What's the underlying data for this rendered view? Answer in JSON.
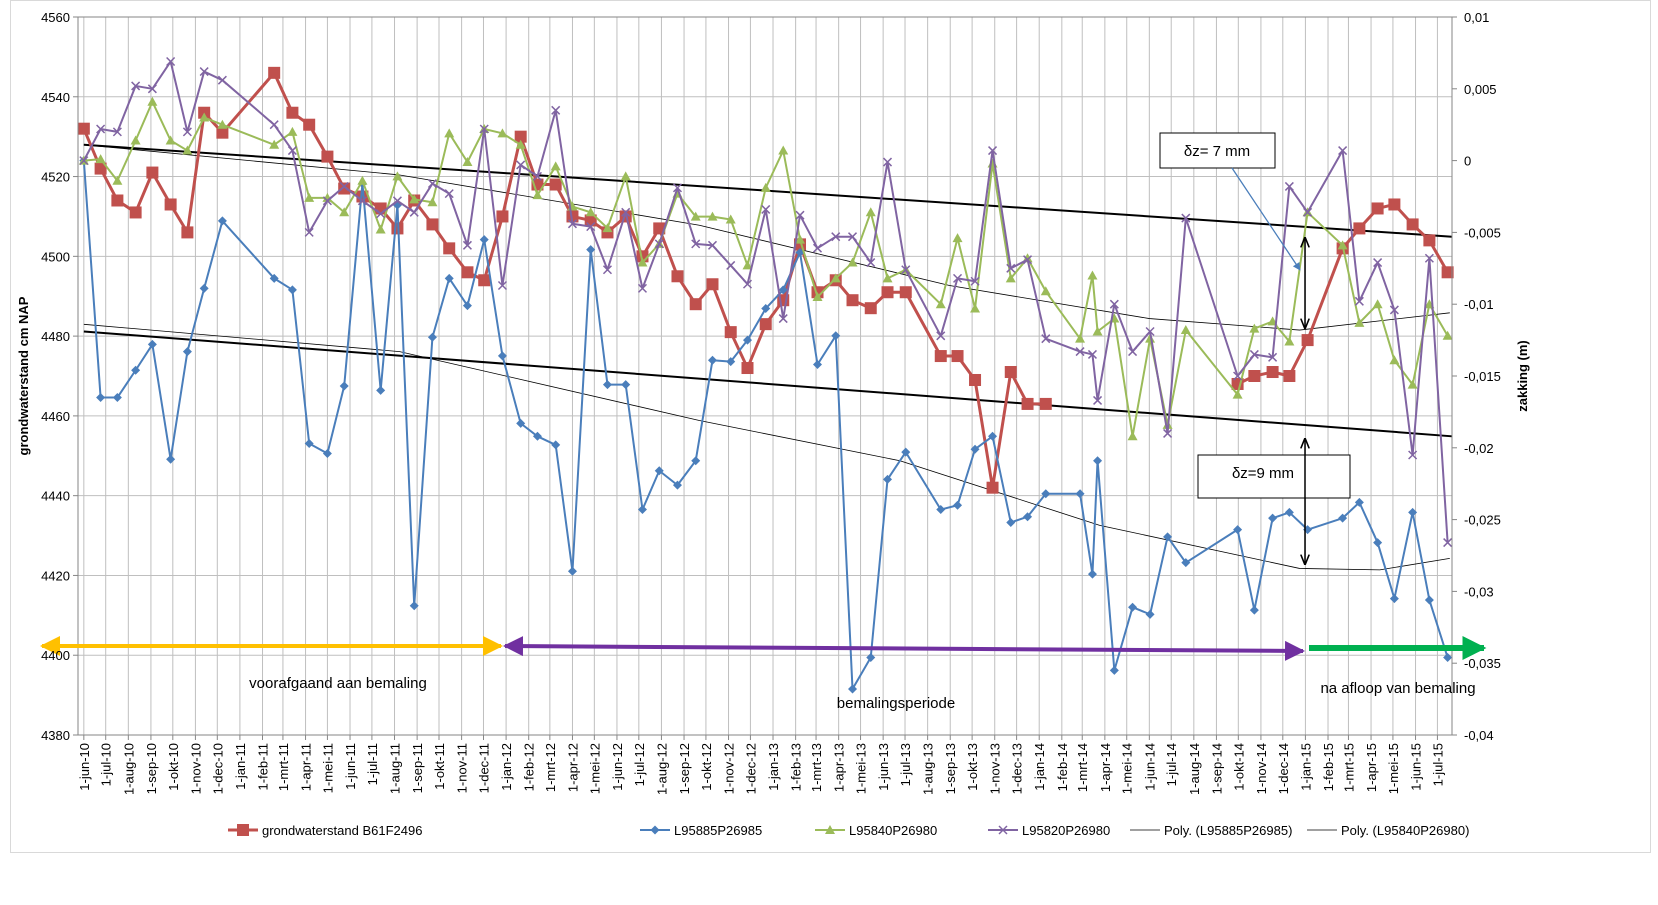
{
  "chart_data": {
    "type": "line",
    "y_label": "grondwaterstand cm NAP",
    "y2_label": "zakking (m)",
    "xlim": [
      "2010-05-24",
      "2015-07-21"
    ],
    "xticks": [
      {
        "value": "2010-06-01",
        "label": "1-jun-10"
      },
      {
        "value": "2010-07-01",
        "label": "1-jul-10"
      },
      {
        "value": "2010-08-01",
        "label": "1-aug-10"
      },
      {
        "value": "2010-09-01",
        "label": "1-sep-10"
      },
      {
        "value": "2010-10-01",
        "label": "1-okt-10"
      },
      {
        "value": "2010-11-01",
        "label": "1-nov-10"
      },
      {
        "value": "2010-12-01",
        "label": "1-dec-10"
      },
      {
        "value": "2011-01-01",
        "label": "1-jan-11"
      },
      {
        "value": "2011-02-01",
        "label": "1-feb-11"
      },
      {
        "value": "2011-03-01",
        "label": "1-mrt-11"
      },
      {
        "value": "2011-04-01",
        "label": "1-apr-11"
      },
      {
        "value": "2011-05-01",
        "label": "1-mei-11"
      },
      {
        "value": "2011-06-01",
        "label": "1-jun-11"
      },
      {
        "value": "2011-07-01",
        "label": "1-jul-11"
      },
      {
        "value": "2011-08-01",
        "label": "1-aug-11"
      },
      {
        "value": "2011-09-01",
        "label": "1-sep-11"
      },
      {
        "value": "2011-10-01",
        "label": "1-okt-11"
      },
      {
        "value": "2011-11-01",
        "label": "1-nov-11"
      },
      {
        "value": "2011-12-01",
        "label": "1-dec-11"
      },
      {
        "value": "2012-01-01",
        "label": "1-jan-12"
      },
      {
        "value": "2012-02-01",
        "label": "1-feb-12"
      },
      {
        "value": "2012-03-01",
        "label": "1-mrt-12"
      },
      {
        "value": "2012-04-01",
        "label": "1-apr-12"
      },
      {
        "value": "2012-05-01",
        "label": "1-mei-12"
      },
      {
        "value": "2012-06-01",
        "label": "1-jun-12"
      },
      {
        "value": "2012-07-01",
        "label": "1-jul-12"
      },
      {
        "value": "2012-08-01",
        "label": "1-aug-12"
      },
      {
        "value": "2012-09-01",
        "label": "1-sep-12"
      },
      {
        "value": "2012-10-01",
        "label": "1-okt-12"
      },
      {
        "value": "2012-11-01",
        "label": "1-nov-12"
      },
      {
        "value": "2012-12-01",
        "label": "1-dec-12"
      },
      {
        "value": "2013-01-01",
        "label": "1-jan-13"
      },
      {
        "value": "2013-02-01",
        "label": "1-feb-13"
      },
      {
        "value": "2013-03-01",
        "label": "1-mrt-13"
      },
      {
        "value": "2013-04-01",
        "label": "1-apr-13"
      },
      {
        "value": "2013-05-01",
        "label": "1-mei-13"
      },
      {
        "value": "2013-06-01",
        "label": "1-jun-13"
      },
      {
        "value": "2013-07-01",
        "label": "1-jul-13"
      },
      {
        "value": "2013-08-01",
        "label": "1-aug-13"
      },
      {
        "value": "2013-09-01",
        "label": "1-sep-13"
      },
      {
        "value": "2013-10-01",
        "label": "1-okt-13"
      },
      {
        "value": "2013-11-01",
        "label": "1-nov-13"
      },
      {
        "value": "2013-12-01",
        "label": "1-dec-13"
      },
      {
        "value": "2014-01-01",
        "label": "1-jan-14"
      },
      {
        "value": "2014-02-01",
        "label": "1-feb-14"
      },
      {
        "value": "2014-03-01",
        "label": "1-mrt-14"
      },
      {
        "value": "2014-04-01",
        "label": "1-apr-14"
      },
      {
        "value": "2014-05-01",
        "label": "1-mei-14"
      },
      {
        "value": "2014-06-01",
        "label": "1-jun-14"
      },
      {
        "value": "2014-07-01",
        "label": "1-jul-14"
      },
      {
        "value": "2014-08-01",
        "label": "1-aug-14"
      },
      {
        "value": "2014-09-01",
        "label": "1-sep-14"
      },
      {
        "value": "2014-10-01",
        "label": "1-okt-14"
      },
      {
        "value": "2014-11-01",
        "label": "1-nov-14"
      },
      {
        "value": "2014-12-01",
        "label": "1-dec-14"
      },
      {
        "value": "2015-01-01",
        "label": "1-jan-15"
      },
      {
        "value": "2015-02-01",
        "label": "1-feb-15"
      },
      {
        "value": "2015-03-01",
        "label": "1-mrt-15"
      },
      {
        "value": "2015-04-01",
        "label": "1-apr-15"
      },
      {
        "value": "2015-05-01",
        "label": "1-mei-15"
      },
      {
        "value": "2015-06-01",
        "label": "1-jun-15"
      },
      {
        "value": "2015-07-01",
        "label": "1-jul-15"
      }
    ],
    "ylim": [
      4380,
      4560
    ],
    "yticks": [
      4380,
      4400,
      4420,
      4440,
      4460,
      4480,
      4500,
      4520,
      4540,
      4560
    ],
    "y2lim": [
      -0.04,
      0.01
    ],
    "y2ticks": [
      {
        "value": -0.04,
        "label": "-0,04"
      },
      {
        "value": -0.035,
        "label": "-0,035"
      },
      {
        "value": -0.03,
        "label": "-0,03"
      },
      {
        "value": -0.025,
        "label": "-0,025"
      },
      {
        "value": -0.02,
        "label": "-0,02"
      },
      {
        "value": -0.015,
        "label": "-0,015"
      },
      {
        "value": -0.01,
        "label": "-0,01"
      },
      {
        "value": -0.005,
        "label": "-0,005"
      },
      0,
      {
        "value": 0.005,
        "label": "0,005"
      },
      {
        "value": 0.01,
        "label": "0,01"
      }
    ],
    "grid": true,
    "legend": "bottom",
    "x": [
      "2010-06-01",
      "2010-06-24",
      "2010-07-17",
      "2010-08-11",
      "2010-09-03",
      "2010-09-28",
      "2010-10-21",
      "2010-11-13",
      "2010-12-08",
      "2011-02-17",
      "2011-03-14",
      "2011-04-06",
      "2011-05-01",
      "2011-05-24",
      "2011-06-18",
      "2011-07-13",
      "2011-08-05",
      "2011-08-28",
      "2011-09-22",
      "2011-10-15",
      "2011-11-09",
      "2011-12-02",
      "2011-12-27",
      "2012-01-21",
      "2012-02-13",
      "2012-03-09",
      "2012-04-01",
      "2012-04-26",
      "2012-05-19",
      "2012-06-13",
      "2012-07-06",
      "2012-07-29",
      "2012-08-23",
      "2012-09-17",
      "2012-10-10",
      "2012-11-04",
      "2012-11-27",
      "2012-12-22",
      "2013-01-15",
      "2013-02-07",
      "2013-03-03",
      "2013-03-28",
      "2013-04-20",
      "2013-05-15",
      "2013-06-07",
      "2013-07-02",
      "2013-08-19",
      "2013-09-11",
      "2013-10-05",
      "2013-10-29",
      "2013-11-23",
      "2013-12-16",
      "2014-01-10",
      "2014-02-26",
      "2014-03-15",
      "2014-03-22",
      "2014-04-14",
      "2014-05-09",
      "2014-06-02",
      "2014-06-26",
      "2014-07-21",
      "2014-09-30",
      "2014-10-23",
      "2014-11-17",
      "2014-12-10",
      "2015-01-04",
      "2015-02-21",
      "2015-03-16",
      "2015-04-10",
      "2015-05-03",
      "2015-05-28",
      "2015-06-20",
      "2015-07-15"
    ],
    "series": [
      {
        "name": "grondwaterstand B61F2496",
        "color": "#c0504d",
        "marker": "square",
        "axis": "y",
        "values": [
          4532,
          4522,
          4514,
          4511,
          4521,
          4513,
          4506,
          4536,
          4531,
          4546,
          4536,
          4533,
          4525,
          4517,
          4515,
          4512,
          4507,
          4514,
          4508,
          4502,
          4496,
          4494,
          4510,
          4530,
          4518,
          4518,
          4510,
          4509,
          4506,
          4510,
          4500,
          4507,
          4495,
          4488,
          4493,
          4481,
          4472,
          4483,
          4489,
          4503,
          4491,
          4494,
          4489,
          4487,
          4491,
          4491,
          4475,
          4475,
          4469,
          4442,
          4471,
          4463,
          4463,
          null,
          null,
          null,
          null,
          null,
          null,
          null,
          null,
          4468,
          4470,
          4471,
          4470,
          4479,
          4502,
          4507,
          4512,
          4513,
          4508,
          4504,
          4496
        ]
      },
      {
        "name": "L95885P26985",
        "color": "#4a7ebb",
        "marker": "diamond",
        "axis": "y2",
        "values": [
          0,
          -0.0165,
          -0.0165,
          -0.0146,
          -0.0128,
          -0.0208,
          -0.0133,
          -0.0089,
          -0.0042,
          -0.0082,
          -0.009,
          -0.0197,
          -0.0204,
          -0.0157,
          -0.0016,
          -0.016,
          -0.0031,
          -0.031,
          -0.0123,
          -0.0082,
          -0.0101,
          -0.0055,
          -0.0136,
          -0.0183,
          -0.0192,
          -0.0198,
          -0.0286,
          -0.0062,
          -0.0156,
          -0.0156,
          -0.0243,
          -0.0216,
          -0.0226,
          -0.0209,
          -0.0139,
          -0.014,
          -0.0125,
          -0.0103,
          -0.009,
          -0.0064,
          -0.0142,
          -0.0122,
          -0.0368,
          -0.0346,
          -0.0222,
          -0.0203,
          -0.0243,
          -0.024,
          -0.0201,
          -0.0192,
          -0.0252,
          -0.0248,
          -0.0232,
          -0.0232,
          -0.0288,
          -0.0209,
          -0.0355,
          -0.0311,
          -0.0316,
          -0.0262,
          -0.028,
          -0.0257,
          -0.0313,
          -0.0249,
          -0.0245,
          -0.0257,
          -0.0249,
          -0.0238,
          -0.0266,
          -0.0305,
          -0.0245,
          -0.0306,
          -0.0346
        ]
      },
      {
        "name": "L95840P26980",
        "color": "#9bbb59",
        "marker": "triangle",
        "axis": "y2",
        "values": [
          0,
          0.0001,
          -0.0014,
          0.0014,
          0.0041,
          0.0014,
          0.0007,
          0.003,
          0.0025,
          0.0011,
          0.002,
          -0.0026,
          -0.0026,
          -0.0036,
          -0.0014,
          -0.0048,
          -0.0011,
          -0.0027,
          -0.0029,
          0.0019,
          -0.0001,
          0.0022,
          0.0019,
          0.0011,
          -0.0024,
          -0.0004,
          -0.0032,
          -0.0036,
          -0.0047,
          -0.0011,
          -0.0071,
          -0.0058,
          -0.0023,
          -0.0039,
          -0.0039,
          -0.0041,
          -0.0073,
          -0.0019,
          0.0007,
          -0.0055,
          -0.0095,
          -0.0082,
          -0.0071,
          -0.0036,
          -0.0082,
          -0.0076,
          -0.01,
          -0.0054,
          -0.0103,
          -0.0002,
          -0.0082,
          -0.0068,
          -0.0091,
          -0.0124,
          -0.008,
          -0.0119,
          -0.011,
          -0.0192,
          -0.0124,
          -0.0184,
          -0.0118,
          -0.0163,
          -0.0117,
          -0.0112,
          -0.0126,
          -0.0036,
          -0.0059,
          -0.0113,
          -0.01,
          -0.0139,
          -0.0156,
          -0.01,
          -0.0122
        ]
      },
      {
        "name": "L95820P26980",
        "color": "#8064a2",
        "marker": "x",
        "axis": "y2",
        "values": [
          0,
          0.0022,
          0.002,
          0.0052,
          0.005,
          0.0069,
          0.002,
          0.0062,
          0.0056,
          0.0025,
          0.0007,
          -0.005,
          -0.0028,
          -0.0018,
          -0.0028,
          -0.0037,
          -0.0028,
          -0.0036,
          -0.0016,
          -0.0023,
          -0.0059,
          0.0022,
          -0.0087,
          -0.0003,
          -0.0011,
          0.0035,
          -0.0044,
          -0.0046,
          -0.0076,
          -0.0036,
          -0.0089,
          -0.0058,
          -0.0019,
          -0.0058,
          -0.0059,
          -0.0073,
          -0.0086,
          -0.0034,
          -0.011,
          -0.0038,
          -0.0061,
          -0.0053,
          -0.0053,
          -0.0071,
          -0.0001,
          -0.0076,
          -0.0122,
          -0.0082,
          -0.0084,
          0.0007,
          -0.0075,
          -0.0069,
          -0.0124,
          -0.0133,
          -0.0135,
          -0.0167,
          -0.01,
          -0.0133,
          -0.0119,
          -0.019,
          -0.004,
          -0.015,
          -0.0135,
          -0.0137,
          -0.0018,
          -0.0036,
          0.0007,
          -0.0098,
          -0.0071,
          -0.0104,
          -0.0205,
          -0.0068,
          -0.0266
        ]
      }
    ],
    "trendlines": [
      {
        "name": "Poly. (L95885P26985)",
        "color": "#000000",
        "axis": "y2",
        "x": [
          "2010-06-01",
          "2011-08-08",
          "2012-09-22",
          "2013-06-24",
          "2014-03-25",
          "2014-12-24",
          "2015-04-13",
          "2015-07-18"
        ],
        "values": [
          -0.0114,
          -0.0133,
          -0.0181,
          -0.0209,
          -0.0254,
          -0.0284,
          -0.0285,
          -0.0277
        ]
      },
      {
        "name": "Poly. (L95840P26980)",
        "color": "#000000",
        "axis": "y2",
        "x": [
          "2010-06-01",
          "2011-08-08",
          "2012-09-22",
          "2013-08-31",
          "2014-06-01",
          "2014-12-24",
          "2015-07-18"
        ],
        "values": [
          0.0011,
          -0.001,
          -0.0045,
          -0.0087,
          -0.011,
          -0.0118,
          -0.0106
        ]
      }
    ],
    "linear_lines": [
      {
        "color": "#000000",
        "axis": "y2",
        "x": [
          "2010-06-01",
          "2015-07-21"
        ],
        "values": [
          0.0011,
          -0.0053
        ]
      },
      {
        "color": "#000000",
        "axis": "y2",
        "x": [
          "2010-06-01",
          "2015-07-21"
        ],
        "values": [
          -0.0119,
          -0.0192
        ]
      }
    ],
    "annotations": [
      "δz= 7 mm",
      "δz=9 mm",
      "voorafgaand aan bemaling",
      "bemalingsperiode",
      "na afloop van bemaling"
    ]
  }
}
